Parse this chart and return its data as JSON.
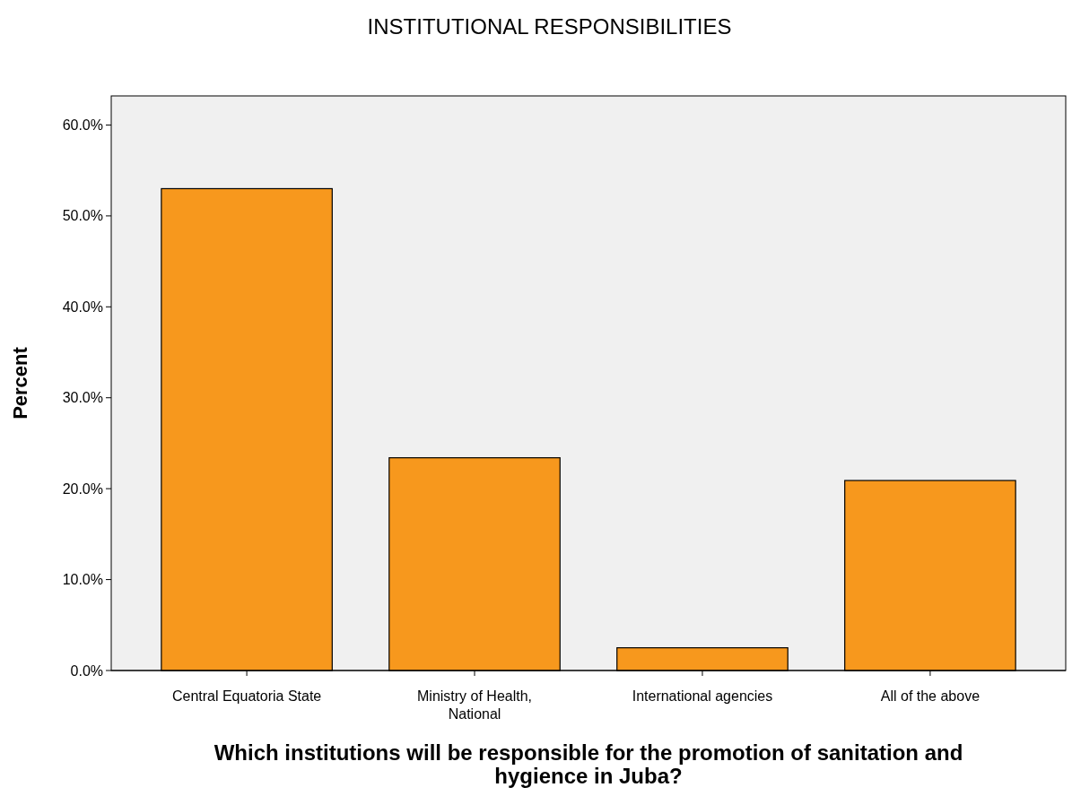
{
  "chart_data": {
    "type": "bar",
    "title": "INSTITUTIONAL RESPONSIBILITIES",
    "xlabel": "Which institutions will be responsible for the promotion of sanitation and hygience in Juba?",
    "ylabel": "Percent",
    "categories": [
      "Central Equatoria State",
      "Ministry of Health, National",
      "International agencies",
      "All of the above"
    ],
    "values": [
      53.0,
      23.4,
      2.5,
      20.9
    ],
    "color": "#f7981d",
    "ylim": [
      0,
      63.2
    ],
    "yticks": [
      {
        "value": 0,
        "label": "0.0%"
      },
      {
        "value": 10,
        "label": "10.0%"
      },
      {
        "value": 20,
        "label": "20.0%"
      },
      {
        "value": 30,
        "label": "30.0%"
      },
      {
        "value": 40,
        "label": "40.0%"
      },
      {
        "value": 50,
        "label": "50.0%"
      },
      {
        "value": 60,
        "label": "60.0%"
      }
    ],
    "grid": false
  }
}
